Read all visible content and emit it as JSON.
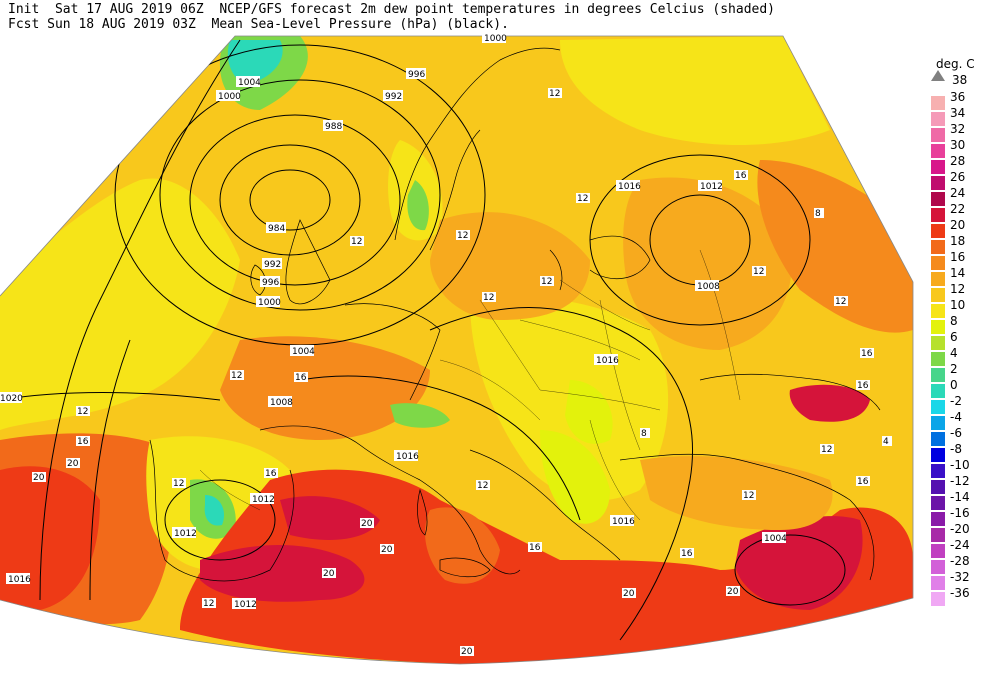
{
  "header": {
    "line1": "Init  Sat 17 AUG 2019 06Z  NCEP/GFS forecast 2m dew point temperatures in degrees Celcius (shaded)",
    "line2": "Fcst Sun 18 AUG 2019 03Z  Mean Sea-Level Pressure (hPa) (black)."
  },
  "legend": {
    "unit": "deg. C",
    "top_value": "38",
    "entries": [
      {
        "label": "36",
        "color": "#f7b0b0"
      },
      {
        "label": "34",
        "color": "#f59ab8"
      },
      {
        "label": "32",
        "color": "#ef6aa6"
      },
      {
        "label": "30",
        "color": "#e8409a"
      },
      {
        "label": "28",
        "color": "#d8168a"
      },
      {
        "label": "26",
        "color": "#c00c6e"
      },
      {
        "label": "24",
        "color": "#b0084c"
      },
      {
        "label": "22",
        "color": "#d5143a"
      },
      {
        "label": "20",
        "color": "#ee3a16"
      },
      {
        "label": "18",
        "color": "#f26a1a"
      },
      {
        "label": "16",
        "color": "#f58a1c"
      },
      {
        "label": "14",
        "color": "#f7aa1e"
      },
      {
        "label": "12",
        "color": "#f8c81c"
      },
      {
        "label": "10",
        "color": "#f6e418"
      },
      {
        "label": "8",
        "color": "#e3f20c"
      },
      {
        "label": "6",
        "color": "#b6e12c"
      },
      {
        "label": "4",
        "color": "#7ed848"
      },
      {
        "label": "2",
        "color": "#47d58a"
      },
      {
        "label": "0",
        "color": "#2bd9b8"
      },
      {
        "label": "-2",
        "color": "#1ad7e8"
      },
      {
        "label": "-4",
        "color": "#0aa5e8"
      },
      {
        "label": "-6",
        "color": "#0070e0"
      },
      {
        "label": "-8",
        "color": "#0000e0"
      },
      {
        "label": "-10",
        "color": "#3a10c8"
      },
      {
        "label": "-12",
        "color": "#5410b0"
      },
      {
        "label": "-14",
        "color": "#6c14a8"
      },
      {
        "label": "-16",
        "color": "#8a1aa8"
      },
      {
        "label": "-20",
        "color": "#a82aa8"
      },
      {
        "label": "-24",
        "color": "#c040c0"
      },
      {
        "label": "-28",
        "color": "#d260d8"
      },
      {
        "label": "-32",
        "color": "#e080e8"
      },
      {
        "label": "-36",
        "color": "#f0a8f4"
      }
    ]
  },
  "isobar_labels": [
    "1000",
    "1004",
    "1000",
    "996",
    "992",
    "988",
    "984",
    "992",
    "996",
    "1000",
    "1004",
    "1008",
    "1016",
    "1012",
    "1008",
    "1016",
    "1016",
    "1012",
    "1012",
    "1016",
    "1012",
    "1016",
    "1004",
    "1020"
  ],
  "dewpoint_labels": [
    "12",
    "12",
    "12",
    "12",
    "12",
    "12",
    "16",
    "12",
    "16",
    "16",
    "8",
    "12",
    "12",
    "16",
    "12",
    "16",
    "16",
    "12",
    "20",
    "20",
    "20",
    "20",
    "20",
    "12",
    "20",
    "20",
    "16",
    "12",
    "8",
    "4",
    "12",
    "16",
    "16",
    "20",
    "12"
  ]
}
